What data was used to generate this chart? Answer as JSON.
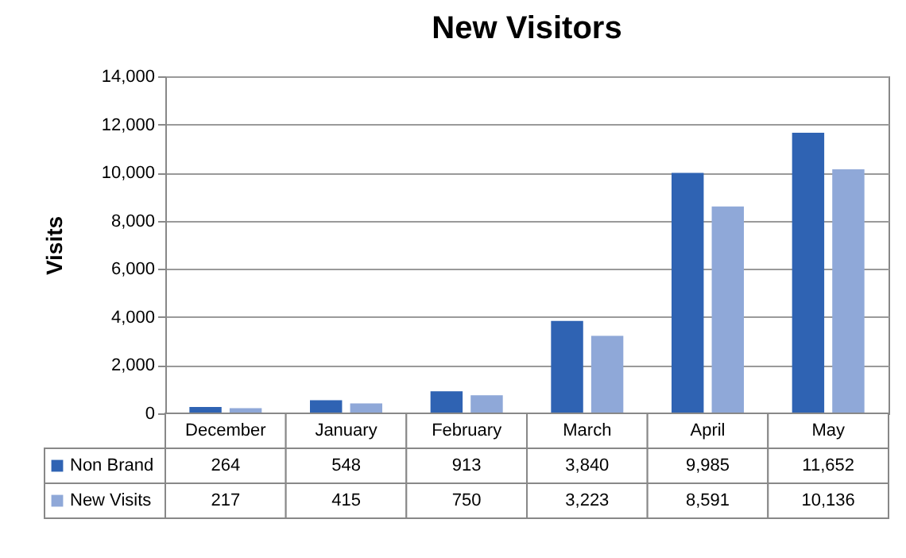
{
  "chart_data": {
    "type": "bar",
    "title": "New Visitors",
    "ylabel": "Visits",
    "categories": [
      "December",
      "January",
      "February",
      "March",
      "April",
      "May"
    ],
    "series": [
      {
        "name": "Non Brand",
        "color": "#2f63b3",
        "values": [
          264,
          548,
          913,
          3840,
          9985,
          11652
        ],
        "value_labels": [
          "264",
          "548",
          "913",
          "3,840",
          "9,985",
          "11,652"
        ]
      },
      {
        "name": "New Visits",
        "color": "#8fa8d8",
        "values": [
          217,
          415,
          750,
          3223,
          8591,
          10136
        ],
        "value_labels": [
          "217",
          "415",
          "750",
          "3,223",
          "8,591",
          "10,136"
        ]
      }
    ],
    "ylim": [
      0,
      14000
    ],
    "yticks": [
      0,
      {
        "value": 2000,
        "label": "2,000"
      },
      {
        "value": 4000,
        "label": "4,000"
      },
      {
        "value": 6000,
        "label": "6,000"
      },
      {
        "value": 8000,
        "label": "8,000"
      },
      {
        "value": 10000,
        "label": "10,000"
      },
      {
        "value": 12000,
        "label": "12,000"
      },
      {
        "value": 14000,
        "label": "14,000"
      }
    ],
    "grid": "y",
    "legend": "bottom"
  }
}
